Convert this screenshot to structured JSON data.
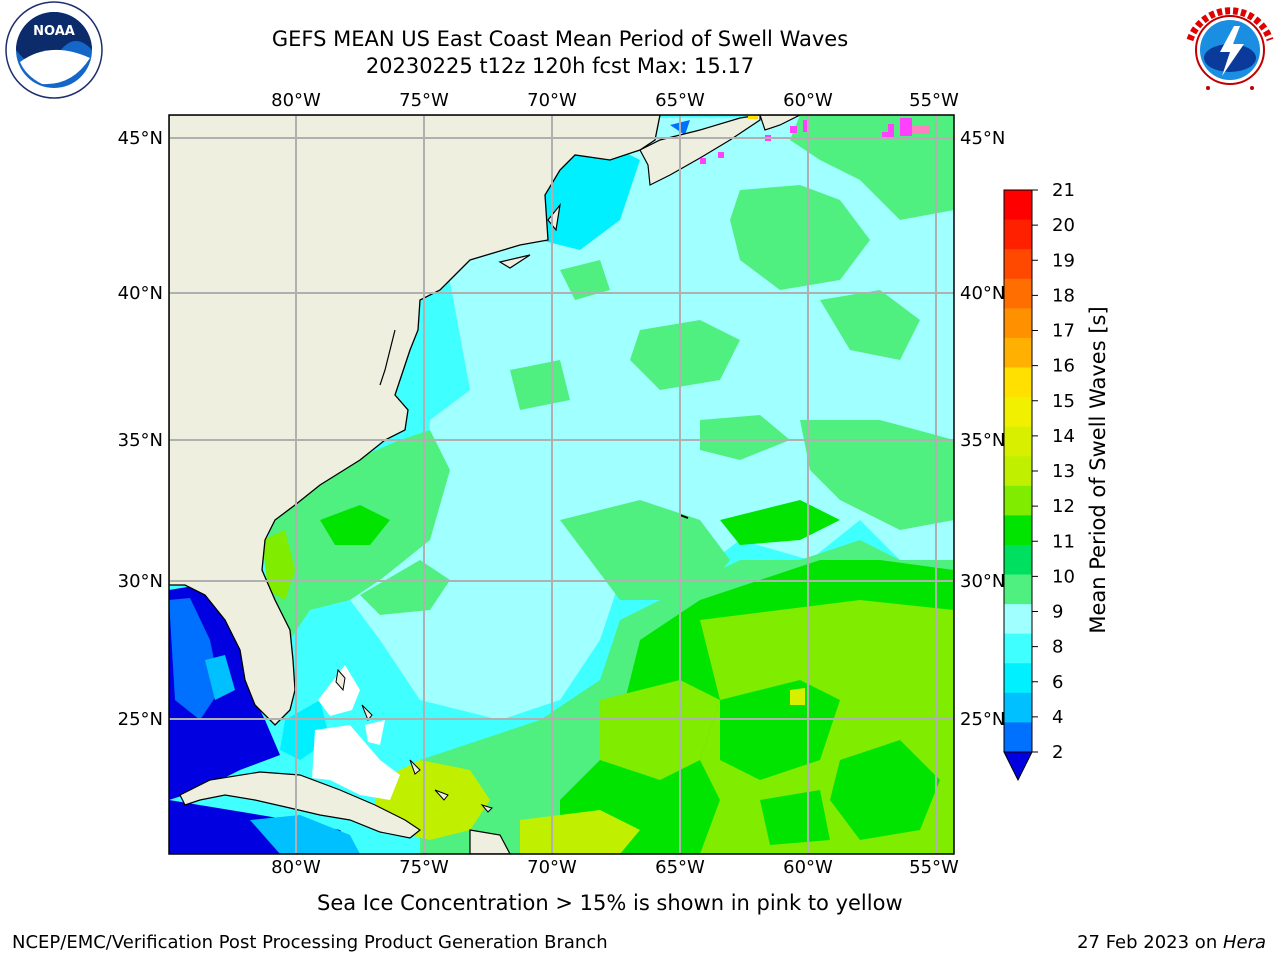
{
  "title": {
    "line1": "GEFS MEAN US East Coast Mean Period of Swell Waves",
    "line2": "20230225 t12z 120h fcst   Max: 15.17"
  },
  "logos": {
    "left": {
      "icon": "noaa-logo",
      "text": "NOAA",
      "ring_text": "NATIONAL OCEANIC AND ATMOSPHERIC ADMINISTRATION · U.S. DEPARTMENT OF COMMERCE"
    },
    "right": {
      "icon": "nws-logo",
      "ring_text": "NATIONAL WEATHER SERVICE"
    }
  },
  "map": {
    "lon_ticks_top": [
      "80°W",
      "75°W",
      "70°W",
      "65°W",
      "60°W",
      "55°W"
    ],
    "lon_ticks_bottom": [
      "80°W",
      "75°W",
      "70°W",
      "65°W",
      "60°W",
      "55°W"
    ],
    "lat_ticks_left": [
      "45°N",
      "40°N",
      "35°N",
      "30°N",
      "25°N"
    ],
    "lat_ticks_right": [
      "45°N",
      "40°N",
      "35°N",
      "30°N",
      "25°N"
    ],
    "land_color": "#efefdf",
    "grid_color": "#b0b0b0"
  },
  "colorbar": {
    "label": "Mean Period of Swell Waves [s]",
    "ticks": [
      "21",
      "20",
      "19",
      "18",
      "17",
      "16",
      "15",
      "14",
      "13",
      "12",
      "11",
      "10",
      "9",
      "8",
      "6",
      "4",
      "2"
    ],
    "colors": [
      "#ff0000",
      "#ff2000",
      "#ff4800",
      "#ff6e00",
      "#ff9000",
      "#ffb000",
      "#ffe000",
      "#f0f000",
      "#d8f000",
      "#c0f000",
      "#80ec00",
      "#00e400",
      "#00e060",
      "#50f080",
      "#a0ffff",
      "#40ffff",
      "#00f0ff",
      "#00c0ff",
      "#0070ff"
    ],
    "under_color": "#0000e0"
  },
  "caption": "Sea Ice Concentration > 15% is shown in pink to yellow",
  "footer": {
    "left": "NCEP/EMC/Verification Post Processing Product Generation Branch",
    "right_date": "27 Feb 2023 on ",
    "right_host": "Hera"
  }
}
